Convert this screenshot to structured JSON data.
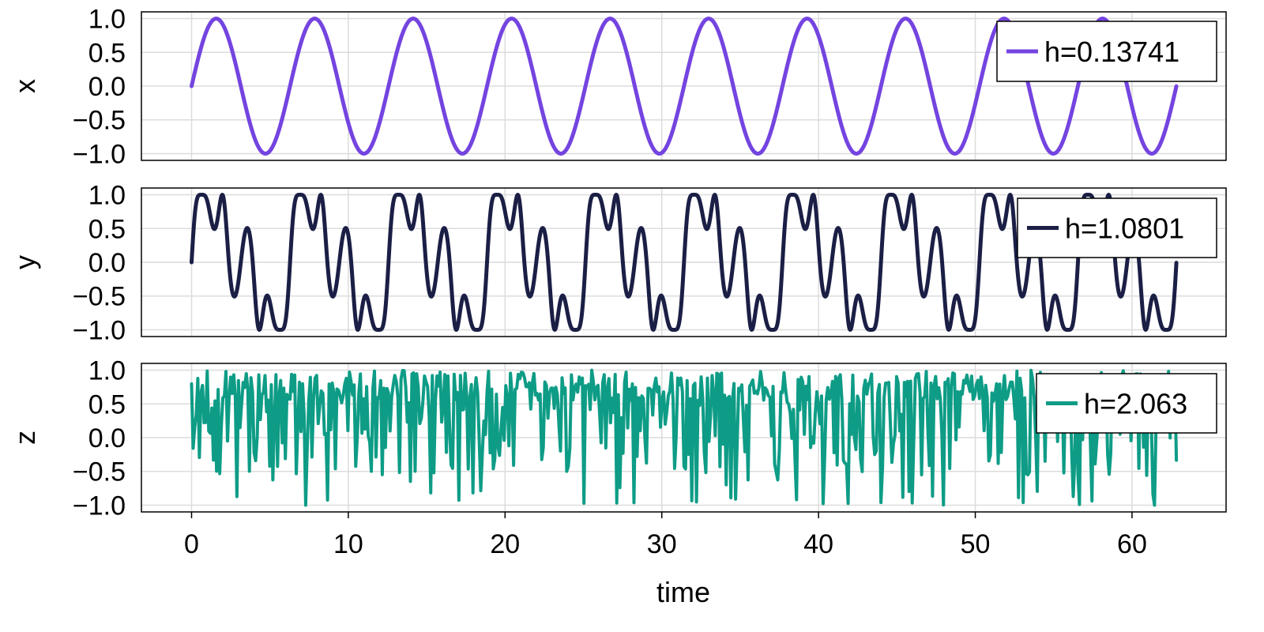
{
  "chart_data": [
    {
      "type": "line",
      "ylabel": "x",
      "xlim": [
        -3.2,
        66.0
      ],
      "ylim": [
        -1.1,
        1.1
      ],
      "yticks": [
        1.0,
        0.5,
        0.0,
        -0.5,
        -1.0
      ],
      "yticklabels": [
        "1.0",
        "0.5",
        "0.0",
        "−0.5",
        "−1.0"
      ],
      "series": [
        {
          "name": "h=0.13741",
          "color": "#7444e0",
          "formula": "sin(t)",
          "t_range": [
            0,
            62.83
          ]
        }
      ]
    },
    {
      "type": "line",
      "ylabel": "y",
      "xlim": [
        -3.2,
        66.0
      ],
      "ylim": [
        -1.1,
        1.1
      ],
      "yticks": [
        1.0,
        0.5,
        0.0,
        -0.5,
        -1.0
      ],
      "yticklabels": [
        "1.0",
        "0.5",
        "0.0",
        "−0.5",
        "−1.0"
      ],
      "series": [
        {
          "name": "h=1.0801",
          "color": "#1b1f45",
          "formula": "sin(t + sin(3t))",
          "t_range": [
            0,
            62.83
          ]
        }
      ]
    },
    {
      "type": "line",
      "ylabel": "z",
      "xlim": [
        -3.2,
        66.0
      ],
      "ylim": [
        -1.1,
        1.1
      ],
      "yticks": [
        1.0,
        0.5,
        0.0,
        -0.5,
        -1.0
      ],
      "yticklabels": [
        "1.0",
        "0.5",
        "0.0",
        "−0.5",
        "−1.0"
      ],
      "xticks": [
        0,
        10,
        20,
        30,
        40,
        50,
        60
      ],
      "xticklabels": [
        "0",
        "10",
        "20",
        "30",
        "40",
        "50",
        "60"
      ],
      "xlabel": "time",
      "series": [
        {
          "name": "h=2.063",
          "color": "#0e9c86",
          "formula": "chaotic signal in [-1, 1]",
          "t_range": [
            0,
            62.83
          ]
        }
      ]
    }
  ],
  "colors": {
    "x": "#7444e0",
    "y": "#1b1f45",
    "z": "#0e9c86"
  }
}
